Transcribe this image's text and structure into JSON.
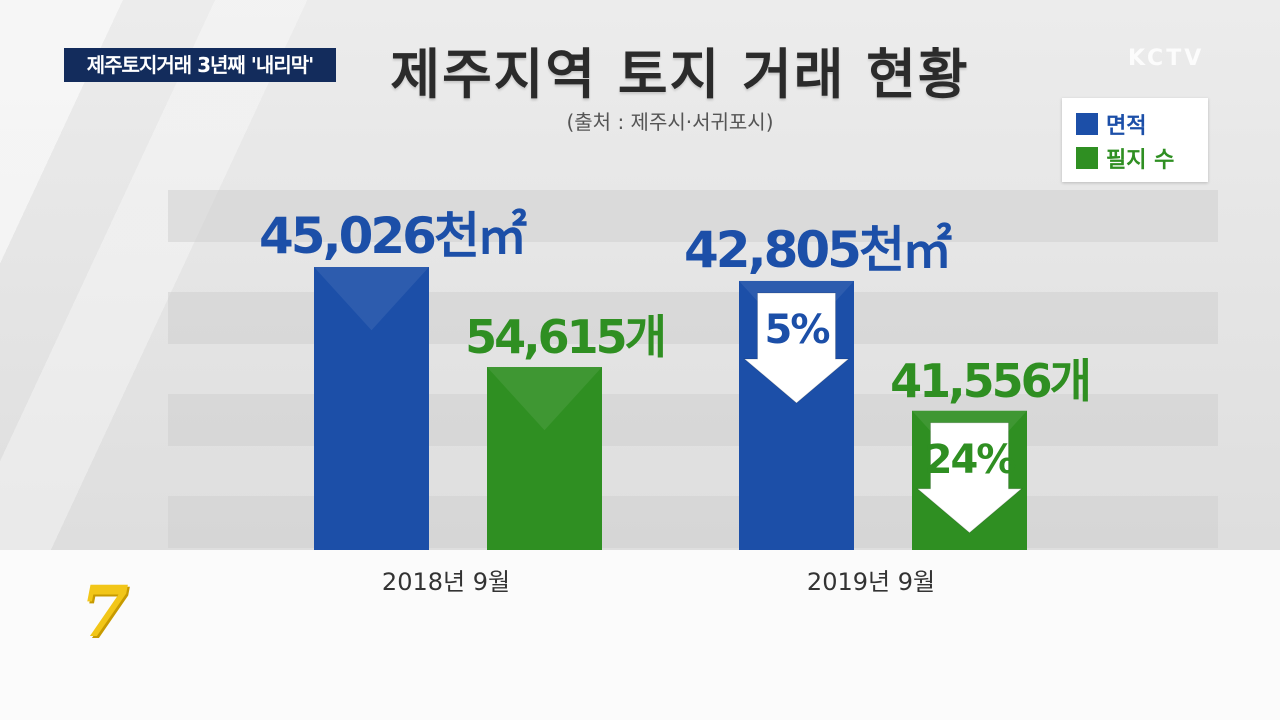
{
  "ticker_text": "제주토지거래 3년째 '내리막'",
  "title": "제주지역 토지 거래 현황",
  "source": "(출처 : 제주시·서귀포시)",
  "broadcaster_logo": "KCTV",
  "channel_mark": "7",
  "colors": {
    "area": "#1c4fa8",
    "parcels": "#2f8f22",
    "ticker_bg": "#132c5c"
  },
  "chart_data": {
    "type": "bar",
    "title": "제주지역 토지 거래 현황",
    "categories": [
      "2018년 9월",
      "2019년 9월"
    ],
    "series": [
      {
        "name": "면적",
        "unit": "천㎡",
        "values": [
          45026,
          42805
        ],
        "value_labels": [
          "45,026천㎡",
          "42,805천㎡"
        ]
      },
      {
        "name": "필지 수",
        "unit": "개",
        "values": [
          54615,
          41556
        ],
        "value_labels": [
          "54,615개",
          "41,556개"
        ]
      }
    ],
    "annotations": [
      {
        "series": "면적",
        "category": "2019년 9월",
        "text": "5%",
        "direction": "down"
      },
      {
        "series": "필지 수",
        "category": "2019년 9월",
        "text": "24%",
        "direction": "down"
      }
    ],
    "legend": [
      "면적",
      "필지 수"
    ],
    "legend_position": "top-right",
    "grid": true
  }
}
